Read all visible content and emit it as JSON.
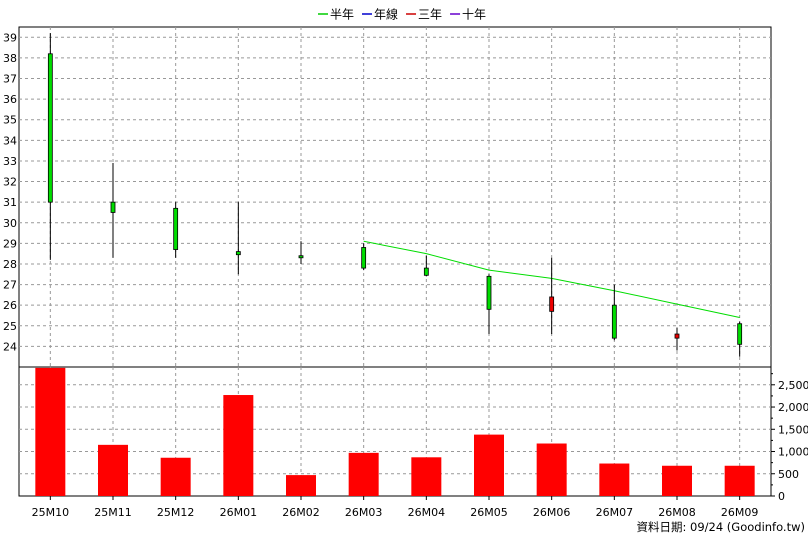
{
  "chart_data": {
    "type": "candlestick",
    "title": "",
    "legend": {
      "placement": "top-center",
      "items": [
        {
          "name": "半年",
          "color": "#00cc00"
        },
        {
          "name": "年線",
          "color": "#0000cc"
        },
        {
          "name": "三年",
          "color": "#cc0000"
        },
        {
          "name": "十年",
          "color": "#6600cc"
        }
      ]
    },
    "categories": [
      "25M10",
      "25M11",
      "25M12",
      "26M01",
      "26M02",
      "26M03",
      "26M04",
      "26M05",
      "26M06",
      "26M07",
      "26M08",
      "26M09"
    ],
    "price": {
      "ylim": [
        23,
        39.5
      ],
      "yticks": [
        24,
        25,
        26,
        27,
        28,
        29,
        30,
        31,
        32,
        33,
        34,
        35,
        36,
        37,
        38,
        39
      ],
      "candles": [
        {
          "open": 31.0,
          "high": 39.2,
          "low": 28.2,
          "close": 38.2,
          "color": "#00dd00"
        },
        {
          "open": 30.5,
          "high": 32.9,
          "low": 28.3,
          "close": 31.0,
          "color": "#00dd00"
        },
        {
          "open": 28.7,
          "high": 31.0,
          "low": 28.3,
          "close": 30.7,
          "color": "#00dd00"
        },
        {
          "open": 28.45,
          "high": 31.0,
          "low": 27.5,
          "close": 28.6,
          "color": "#00dd00"
        },
        {
          "open": 28.3,
          "high": 29.1,
          "low": 28.0,
          "close": 28.4,
          "color": "#00dd00"
        },
        {
          "open": 27.8,
          "high": 29.0,
          "low": 27.7,
          "close": 28.8,
          "color": "#00dd00"
        },
        {
          "open": 27.45,
          "high": 28.4,
          "low": 27.4,
          "close": 27.8,
          "color": "#00dd00"
        },
        {
          "open": 25.8,
          "high": 27.5,
          "low": 24.6,
          "close": 27.4,
          "color": "#00dd00"
        },
        {
          "open": 26.4,
          "high": 28.3,
          "low": 24.6,
          "close": 25.7,
          "color": "#ee0000"
        },
        {
          "open": 24.4,
          "high": 27.0,
          "low": 24.3,
          "close": 26.0,
          "color": "#00dd00"
        },
        {
          "open": 24.6,
          "high": 24.9,
          "low": 23.8,
          "close": 24.4,
          "color": "#ee0000"
        },
        {
          "open": 24.1,
          "high": 25.2,
          "low": 23.5,
          "close": 25.1,
          "color": "#00dd00"
        }
      ],
      "ma_half_year": {
        "name": "半年",
        "color": "#00dd00",
        "points": [
          {
            "category": "26M03",
            "value": 29.1
          },
          {
            "category": "26M04",
            "value": 28.5
          },
          {
            "category": "26M05",
            "value": 27.7
          },
          {
            "category": "26M06",
            "value": 27.3
          },
          {
            "category": "26M07",
            "value": 26.7
          },
          {
            "category": "26M08",
            "value": 26.05
          },
          {
            "category": "26M09",
            "value": 25.4
          }
        ]
      }
    },
    "volume": {
      "ylim": [
        0,
        2900
      ],
      "yticks": [
        0,
        500,
        1000,
        1500,
        2000,
        2500
      ],
      "ytick_labels": [
        "0",
        "500",
        "1,000",
        "1,500",
        "2,000",
        "2,500"
      ],
      "bar_color": "#ff0000",
      "values": [
        2880,
        1150,
        860,
        2270,
        470,
        970,
        870,
        1380,
        1180,
        730,
        680,
        680
      ]
    },
    "grid": true
  },
  "footer": {
    "text": "資料日期: 09/24  (Goodinfo.tw)"
  }
}
